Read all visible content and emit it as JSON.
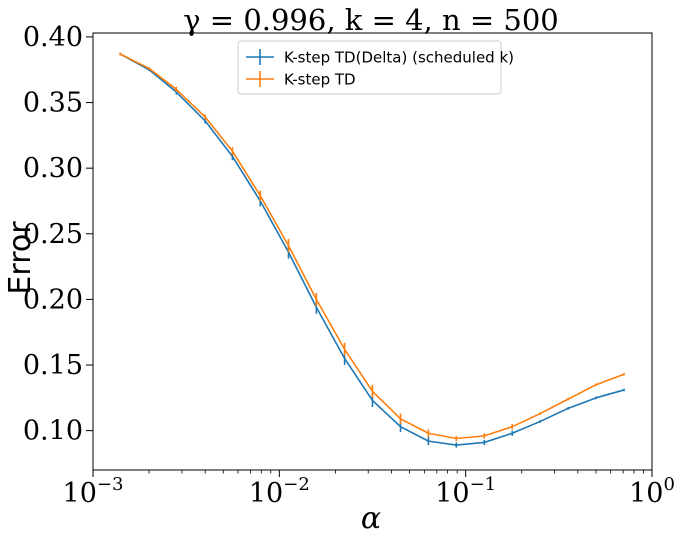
{
  "chart_data": {
    "type": "line",
    "title": "γ = 0.996, k = 4, n = 500",
    "xlabel": "α",
    "ylabel": "Error",
    "xscale": "log",
    "xlim": [
      0.001,
      1.0
    ],
    "ylim": [
      0.07,
      0.403
    ],
    "x_ticks": [
      {
        "value": 0.001,
        "base": "10",
        "exp": "−3"
      },
      {
        "value": 0.01,
        "base": "10",
        "exp": "−2"
      },
      {
        "value": 0.1,
        "base": "10",
        "exp": "−1"
      },
      {
        "value": 1.0,
        "base": "10",
        "exp": "0"
      }
    ],
    "y_ticks": [
      {
        "value": 0.1,
        "label": "0.10"
      },
      {
        "value": 0.15,
        "label": "0.15"
      },
      {
        "value": 0.2,
        "label": "0.20"
      },
      {
        "value": 0.25,
        "label": "0.25"
      },
      {
        "value": 0.3,
        "label": "0.30"
      },
      {
        "value": 0.35,
        "label": "0.35"
      },
      {
        "value": 0.4,
        "label": "0.40"
      }
    ],
    "grid": false,
    "legend_position": "top-center",
    "x": [
      0.0014,
      0.002,
      0.0028,
      0.004,
      0.0056,
      0.0079,
      0.0112,
      0.0158,
      0.0224,
      0.0316,
      0.0447,
      0.0631,
      0.0891,
      0.1259,
      0.1778,
      0.2512,
      0.3548,
      0.5012,
      0.7079
    ],
    "series": [
      {
        "name": "K-step TD(Delta) (scheduled k)",
        "color": "#1f77b4",
        "values": [
          0.387,
          0.375,
          0.358,
          0.336,
          0.309,
          0.275,
          0.236,
          0.194,
          0.155,
          0.123,
          0.103,
          0.092,
          0.089,
          0.091,
          0.098,
          0.107,
          0.117,
          0.125,
          0.131
        ],
        "errors": [
          0.001,
          0.001,
          0.002,
          0.002,
          0.003,
          0.004,
          0.005,
          0.005,
          0.005,
          0.005,
          0.004,
          0.003,
          0.002,
          0.002,
          0.002,
          0.001,
          0.001,
          0.001,
          0.001
        ]
      },
      {
        "name": "K-step TD",
        "color": "#ff7f0e",
        "values": [
          0.387,
          0.376,
          0.36,
          0.339,
          0.313,
          0.279,
          0.241,
          0.2,
          0.162,
          0.13,
          0.109,
          0.098,
          0.094,
          0.096,
          0.103,
          0.113,
          0.124,
          0.135,
          0.143
        ],
        "errors": [
          0.001,
          0.001,
          0.002,
          0.002,
          0.003,
          0.004,
          0.005,
          0.005,
          0.005,
          0.005,
          0.004,
          0.003,
          0.002,
          0.002,
          0.002,
          0.001,
          0.001,
          0.001,
          0.001
        ]
      }
    ]
  }
}
